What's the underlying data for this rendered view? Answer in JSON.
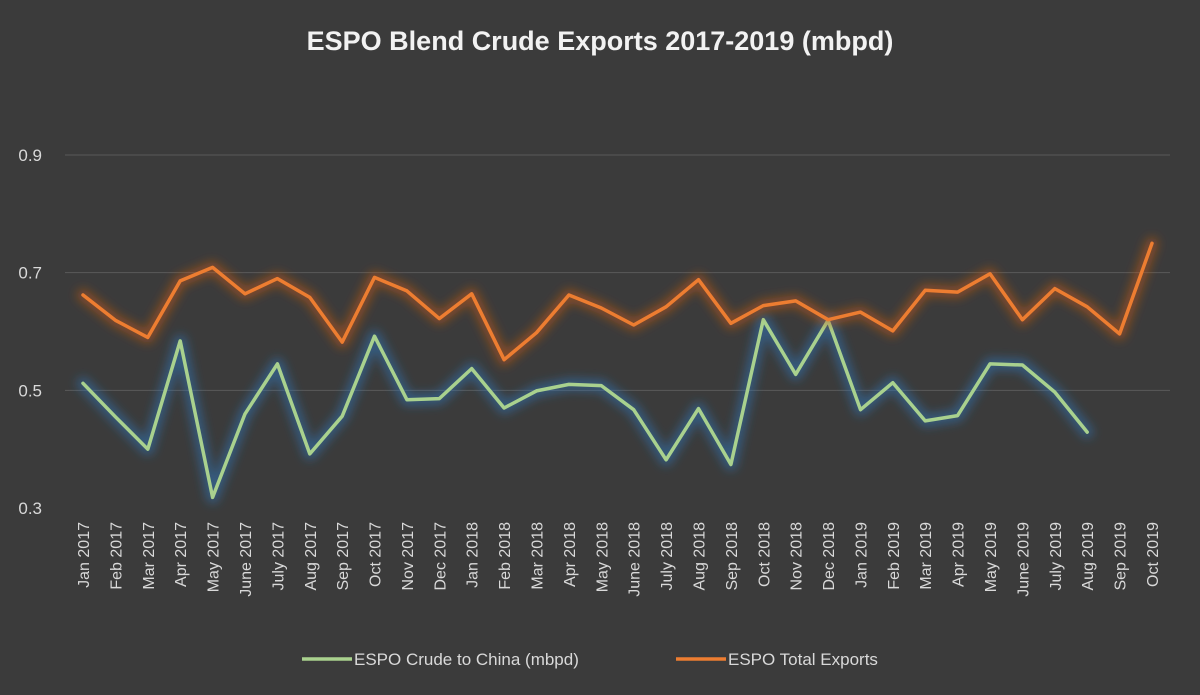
{
  "chart_data": {
    "type": "line",
    "title": "ESPO Blend Crude Exports 2017-2019 (mbpd)",
    "xlabel": "",
    "ylabel": "",
    "ylim": [
      0.3,
      0.9
    ],
    "yticks": [
      "0.3",
      "0.5",
      "0.7",
      "0.9"
    ],
    "grid": true,
    "legend_position": "bottom",
    "categories": [
      "Jan 2017",
      "Feb 2017",
      "Mar 2017",
      "Apr 2017",
      "May 2017",
      "June 2017",
      "July 2017",
      "Aug 2017",
      "Sep 2017",
      "Oct 2017",
      "Nov 2017",
      "Dec 2017",
      "Jan 2018",
      "Feb 2018",
      "Mar 2018",
      "Apr 2018",
      "May 2018",
      "June 2018",
      "July 2018",
      "Aug 2018",
      "Sep 2018",
      "Oct 2018",
      "Nov 2018",
      "Dec 2018",
      "Jan 2019",
      "Feb 2019",
      "Mar 2019",
      "Apr 2019",
      "May 2019",
      "June 2019",
      "July 2019",
      "Aug 2019",
      "Sep 2019",
      "Oct 2019"
    ],
    "series": [
      {
        "name": "ESPO Crude to China (mbpd)",
        "color": "#a9d18e",
        "glow": "#2e75b6",
        "values": [
          0.512,
          0.455,
          0.4,
          0.584,
          0.318,
          0.46,
          0.545,
          0.392,
          0.456,
          0.592,
          0.484,
          0.486,
          0.537,
          0.47,
          0.499,
          0.51,
          0.508,
          0.467,
          0.382,
          0.469,
          0.374,
          0.62,
          0.527,
          0.619,
          0.467,
          0.513,
          0.448,
          0.457,
          0.545,
          0.543,
          0.497,
          0.429,
          null,
          null
        ]
      },
      {
        "name": "ESPO Total Exports",
        "color": "#ed7d31",
        "glow": "#c55a11",
        "values": [
          0.662,
          0.619,
          0.59,
          0.686,
          0.709,
          0.664,
          0.69,
          0.658,
          0.582,
          0.692,
          0.669,
          0.622,
          0.664,
          0.552,
          0.598,
          0.662,
          0.64,
          0.611,
          0.642,
          0.688,
          0.614,
          0.644,
          0.652,
          0.62,
          0.633,
          0.601,
          0.67,
          0.667,
          0.698,
          0.62,
          0.673,
          0.642,
          0.596,
          0.75
        ]
      }
    ]
  }
}
